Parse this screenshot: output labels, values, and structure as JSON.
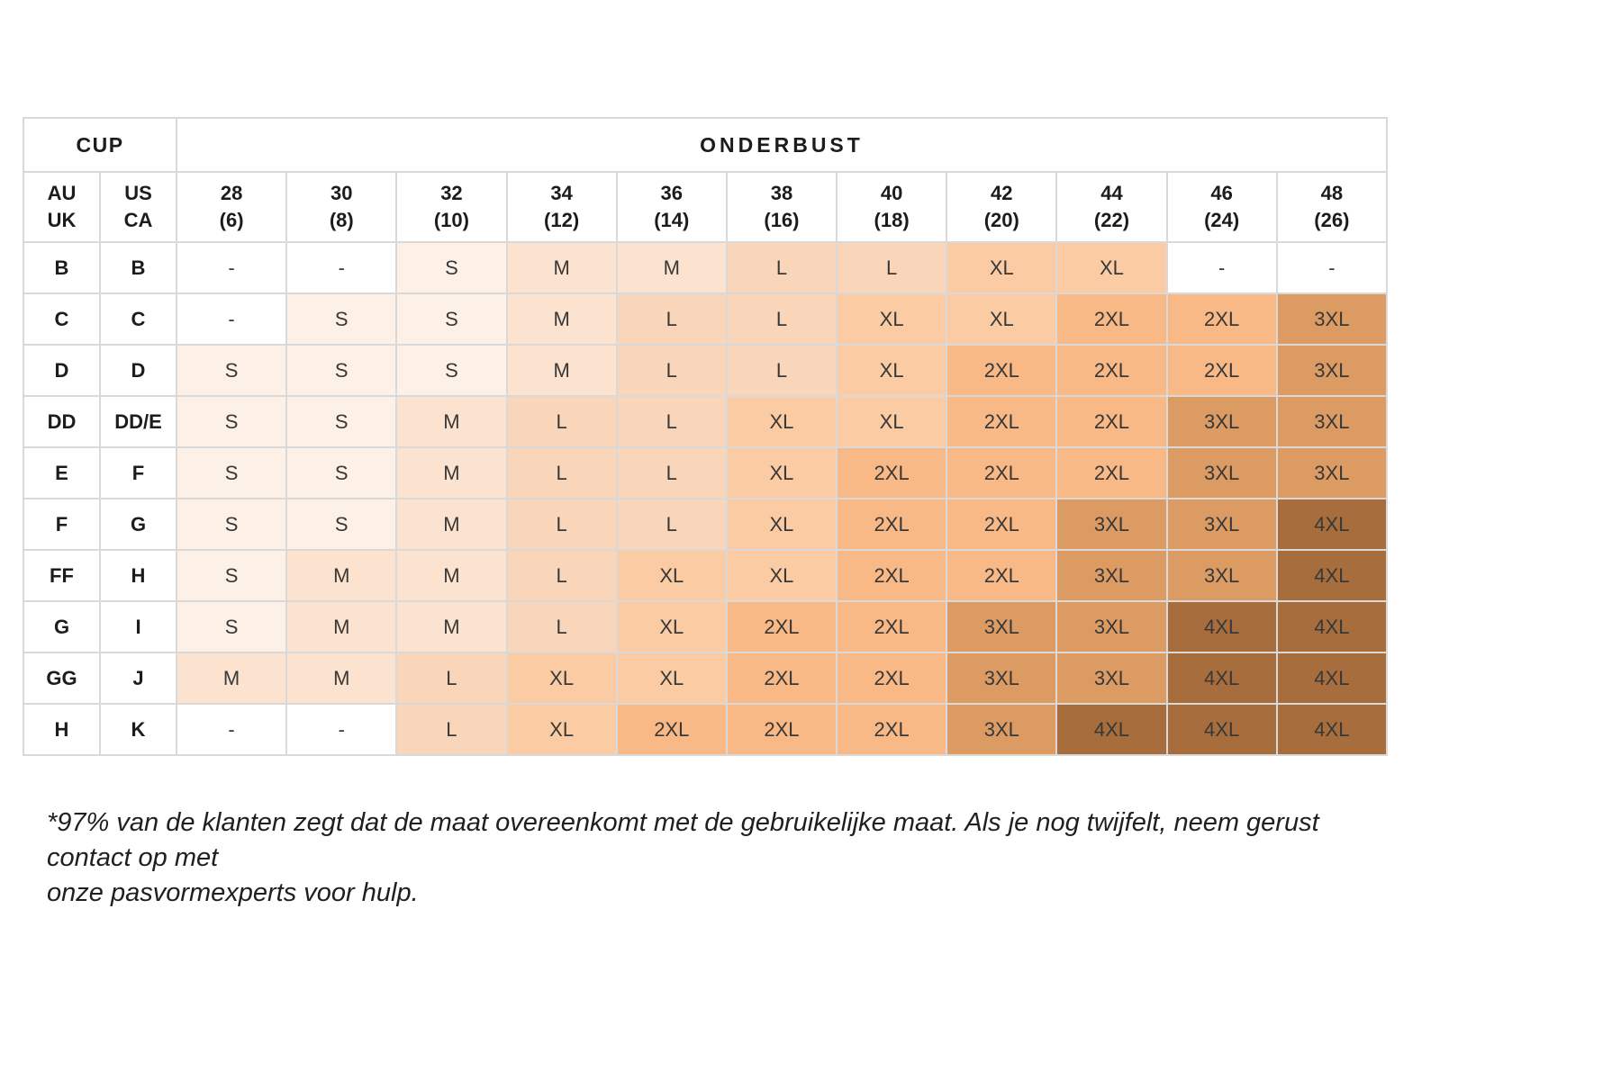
{
  "chart_data": {
    "type": "table",
    "corner_header": "CUP",
    "group_header": "ONDERBUST",
    "row_header_labels": [
      {
        "id": "au-uk",
        "lines": [
          "AU",
          "UK"
        ]
      },
      {
        "id": "us-ca",
        "lines": [
          "US",
          "CA"
        ]
      }
    ],
    "columns": [
      {
        "band": "28",
        "alt": "(6)"
      },
      {
        "band": "30",
        "alt": "(8)"
      },
      {
        "band": "32",
        "alt": "(10)"
      },
      {
        "band": "34",
        "alt": "(12)"
      },
      {
        "band": "36",
        "alt": "(14)"
      },
      {
        "band": "38",
        "alt": "(16)"
      },
      {
        "band": "40",
        "alt": "(18)"
      },
      {
        "band": "42",
        "alt": "(20)"
      },
      {
        "band": "44",
        "alt": "(22)"
      },
      {
        "band": "46",
        "alt": "(24)"
      },
      {
        "band": "48",
        "alt": "(26)"
      }
    ],
    "rows": [
      {
        "au_uk": "B",
        "us_ca": "B",
        "sizes": [
          "-",
          "-",
          "S",
          "M",
          "M",
          "L",
          "L",
          "XL",
          "XL",
          "-",
          "-"
        ]
      },
      {
        "au_uk": "C",
        "us_ca": "C",
        "sizes": [
          "-",
          "S",
          "S",
          "M",
          "L",
          "L",
          "XL",
          "XL",
          "2XL",
          "2XL",
          "3XL"
        ]
      },
      {
        "au_uk": "D",
        "us_ca": "D",
        "sizes": [
          "S",
          "S",
          "S",
          "M",
          "L",
          "L",
          "XL",
          "2XL",
          "2XL",
          "2XL",
          "3XL"
        ]
      },
      {
        "au_uk": "DD",
        "us_ca": "DD/E",
        "sizes": [
          "S",
          "S",
          "M",
          "L",
          "L",
          "XL",
          "XL",
          "2XL",
          "2XL",
          "3XL",
          "3XL"
        ]
      },
      {
        "au_uk": "E",
        "us_ca": "F",
        "sizes": [
          "S",
          "S",
          "M",
          "L",
          "L",
          "XL",
          "2XL",
          "2XL",
          "2XL",
          "3XL",
          "3XL"
        ]
      },
      {
        "au_uk": "F",
        "us_ca": "G",
        "sizes": [
          "S",
          "S",
          "M",
          "L",
          "L",
          "XL",
          "2XL",
          "2XL",
          "3XL",
          "3XL",
          "4XL"
        ]
      },
      {
        "au_uk": "FF",
        "us_ca": "H",
        "sizes": [
          "S",
          "M",
          "M",
          "L",
          "XL",
          "XL",
          "2XL",
          "2XL",
          "3XL",
          "3XL",
          "4XL"
        ]
      },
      {
        "au_uk": "G",
        "us_ca": "I",
        "sizes": [
          "S",
          "M",
          "M",
          "L",
          "XL",
          "2XL",
          "2XL",
          "3XL",
          "3XL",
          "4XL",
          "4XL"
        ]
      },
      {
        "au_uk": "GG",
        "us_ca": "J",
        "sizes": [
          "M",
          "M",
          "L",
          "XL",
          "XL",
          "2XL",
          "2XL",
          "3XL",
          "3XL",
          "4XL",
          "4XL"
        ]
      },
      {
        "au_uk": "H",
        "us_ca": "K",
        "sizes": [
          "-",
          "-",
          "L",
          "XL",
          "2XL",
          "2XL",
          "2XL",
          "3XL",
          "4XL",
          "4XL",
          "4XL"
        ]
      }
    ],
    "size_colors": {
      "-": "#ffffff",
      "S": "#fdf1e7",
      "M": "#fce3cf",
      "L": "#f9d6b9",
      "XL": "#fbcba4",
      "2XL": "#f8b987",
      "3XL": "#dd9b64",
      "4XL": "#a76d3c"
    },
    "legend_position": "none",
    "grid": true
  },
  "footnote": {
    "line1": "*97% van de klanten zegt dat de maat overeenkomt met de gebruikelijke maat. Als je nog twijfelt, neem gerust contact op met",
    "line2": "onze pasvormexperts voor hulp."
  }
}
